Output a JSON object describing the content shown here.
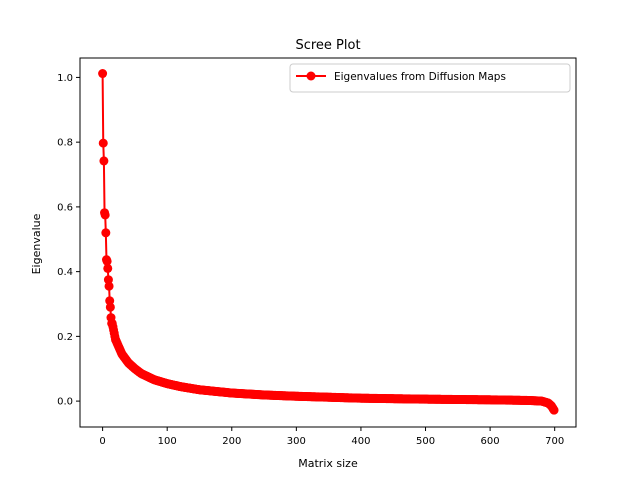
{
  "chart_data": {
    "type": "line",
    "title": "Scree Plot",
    "xlabel": "Matrix size",
    "ylabel": "Eigenvalue",
    "xlim": [
      -35,
      733
    ],
    "ylim": [
      -0.08,
      1.06
    ],
    "xticks": [
      0,
      100,
      200,
      300,
      400,
      500,
      600,
      700
    ],
    "yticks": [
      0.0,
      0.2,
      0.4,
      0.6,
      0.8,
      1.0
    ],
    "xtick_labels": [
      "0",
      "100",
      "200",
      "300",
      "400",
      "500",
      "600",
      "700"
    ],
    "ytick_labels": [
      "0.0",
      "0.2",
      "0.4",
      "0.6",
      "0.8",
      "1.0"
    ],
    "grid": false,
    "legend_position": "top-right",
    "series": [
      {
        "name": "Eigenvalues from Diffusion Maps",
        "color": "#ff0000",
        "marker": "circle",
        "n_points": 700,
        "head_values": [
          1.012,
          0.797,
          0.742,
          0.582,
          0.575,
          0.52,
          0.437,
          0.432,
          0.41,
          0.375,
          0.355,
          0.31,
          0.29,
          0.258,
          0.24
        ],
        "anchors_x": [
          15,
          20,
          30,
          40,
          50,
          60,
          80,
          100,
          120,
          150,
          200,
          250,
          300,
          400,
          500,
          600,
          660,
          680,
          690,
          695,
          699
        ],
        "anchors_y": [
          0.24,
          0.19,
          0.145,
          0.118,
          0.1,
          0.085,
          0.066,
          0.054,
          0.045,
          0.035,
          0.025,
          0.019,
          0.015,
          0.009,
          0.006,
          0.004,
          0.002,
          0.0,
          -0.006,
          -0.015,
          -0.028
        ]
      }
    ]
  }
}
